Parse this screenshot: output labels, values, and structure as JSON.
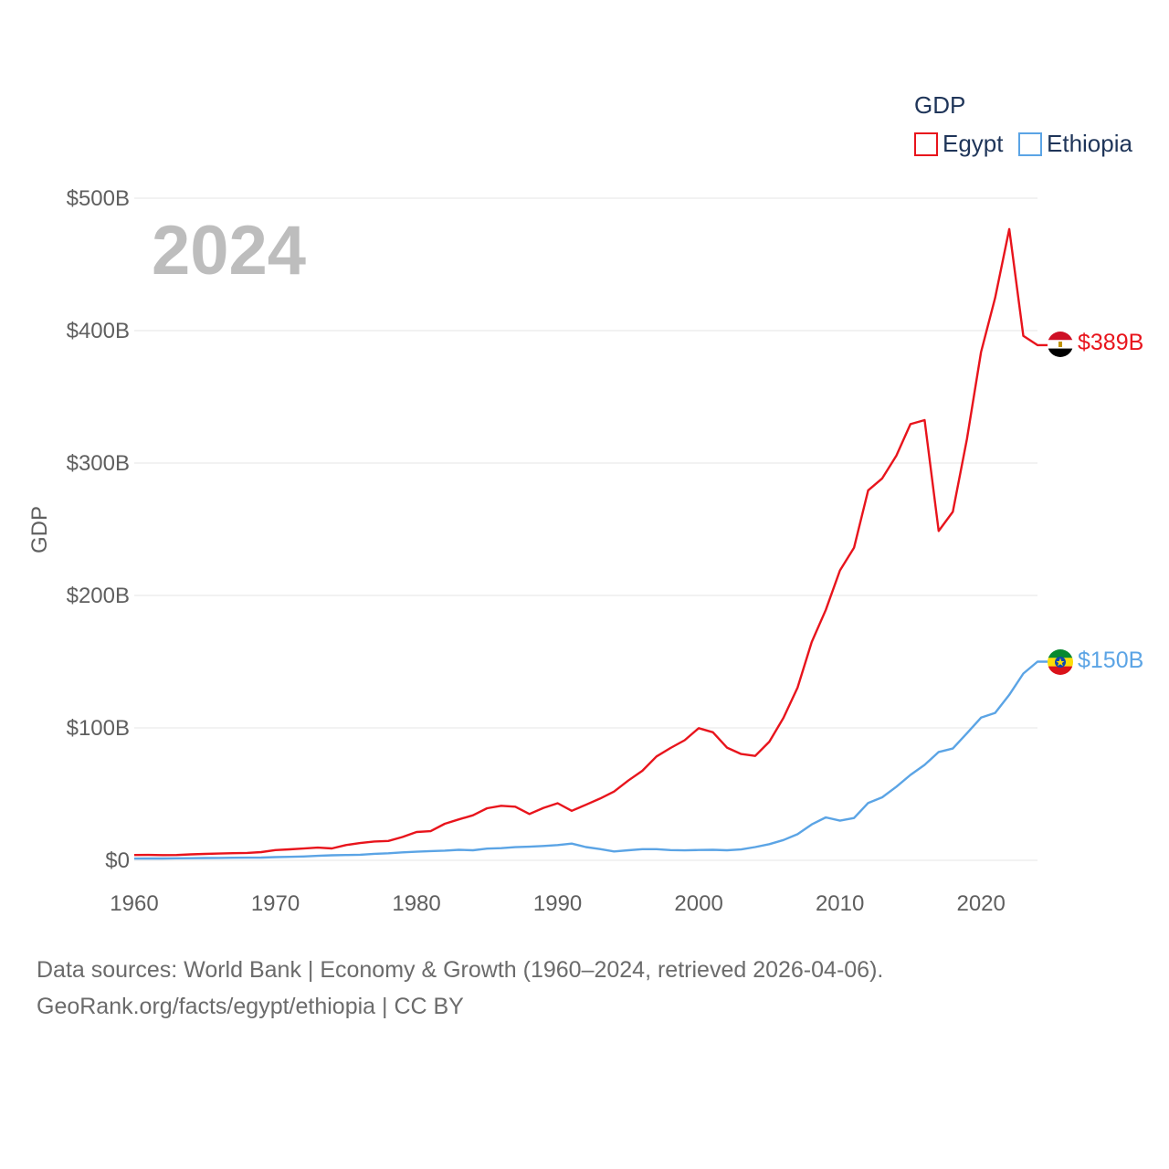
{
  "chart_data": {
    "type": "line",
    "title": "",
    "xlabel": "",
    "ylabel": "GDP",
    "year_label": "2024",
    "legend_title": "GDP",
    "legend_position": "top-right",
    "xlim": [
      1960,
      2024
    ],
    "ylim": [
      0,
      500
    ],
    "x_ticks": [
      1960,
      1970,
      1980,
      1990,
      2000,
      2010,
      2020
    ],
    "x_tick_labels": [
      "1960",
      "1970",
      "1980",
      "1990",
      "2000",
      "2010",
      "2020"
    ],
    "y_ticks": [
      0,
      100,
      200,
      300,
      400,
      500
    ],
    "y_tick_labels": [
      "$0",
      "$100B",
      "$200B",
      "$300B",
      "$400B",
      "$500B"
    ],
    "grid": true,
    "x": [
      1960,
      1961,
      1962,
      1963,
      1964,
      1965,
      1966,
      1967,
      1968,
      1969,
      1970,
      1971,
      1972,
      1973,
      1974,
      1975,
      1976,
      1977,
      1978,
      1979,
      1980,
      1981,
      1982,
      1983,
      1984,
      1985,
      1986,
      1987,
      1988,
      1989,
      1990,
      1991,
      1992,
      1993,
      1994,
      1995,
      1996,
      1997,
      1998,
      1999,
      2000,
      2001,
      2002,
      2003,
      2004,
      2005,
      2006,
      2007,
      2008,
      2009,
      2010,
      2011,
      2012,
      2013,
      2014,
      2015,
      2016,
      2017,
      2018,
      2019,
      2020,
      2021,
      2022,
      2023,
      2024
    ],
    "series": [
      {
        "name": "Egypt",
        "color": "#e8141c",
        "end_label": "$389B",
        "flag": "egypt-flag",
        "values": [
          4,
          4.1,
          3.9,
          4,
          4.5,
          4.8,
          5.1,
          5.4,
          5.6,
          6.2,
          7.7,
          8.3,
          8.9,
          9.6,
          9,
          11.5,
          13,
          14.2,
          14.6,
          17.6,
          21.4,
          22,
          27.6,
          30.9,
          34,
          39.3,
          41.2,
          40.5,
          35,
          39.6,
          43.1,
          37.4,
          41.9,
          46.6,
          51.9,
          60.2,
          67.6,
          78.4,
          84.8,
          90.7,
          99.8,
          96.7,
          85.1,
          80.3,
          78.8,
          89.6,
          107.5,
          130.4,
          164.8,
          189.1,
          218.9,
          236,
          279.4,
          288.4,
          305.6,
          329.4,
          332.4,
          248.7,
          263.2,
          317.9,
          383.8,
          424.7,
          476.7,
          396,
          389
        ]
      },
      {
        "name": "Ethiopia",
        "color": "#5ba4e5",
        "end_label": "$150B",
        "flag": "ethiopia-flag",
        "values": [
          1.3,
          1.4,
          1.4,
          1.5,
          1.6,
          1.7,
          1.8,
          1.9,
          2,
          2.1,
          2.4,
          2.6,
          2.9,
          3.4,
          3.8,
          4,
          4.2,
          4.9,
          5.3,
          6,
          6.5,
          7,
          7.3,
          7.9,
          7.6,
          8.8,
          9.2,
          9.9,
          10.3,
          10.8,
          11.5,
          12.6,
          10,
          8.5,
          6.7,
          7.6,
          8.4,
          8.4,
          7.7,
          7.5,
          7.8,
          7.9,
          7.6,
          8.2,
          10,
          12.2,
          15.3,
          19.7,
          27.1,
          32.4,
          29.9,
          31.9,
          43.3,
          47.6,
          55.6,
          64.5,
          72.1,
          81.8,
          84.4,
          95.9,
          107.7,
          111.3,
          125,
          141,
          150
        ]
      }
    ]
  },
  "source": {
    "line1": "Data sources: World Bank | Economy & Growth (1960–2024, retrieved 2026-04-06).",
    "line2": "GeoRank.org/facts/egypt/ethiopia | CC BY"
  }
}
